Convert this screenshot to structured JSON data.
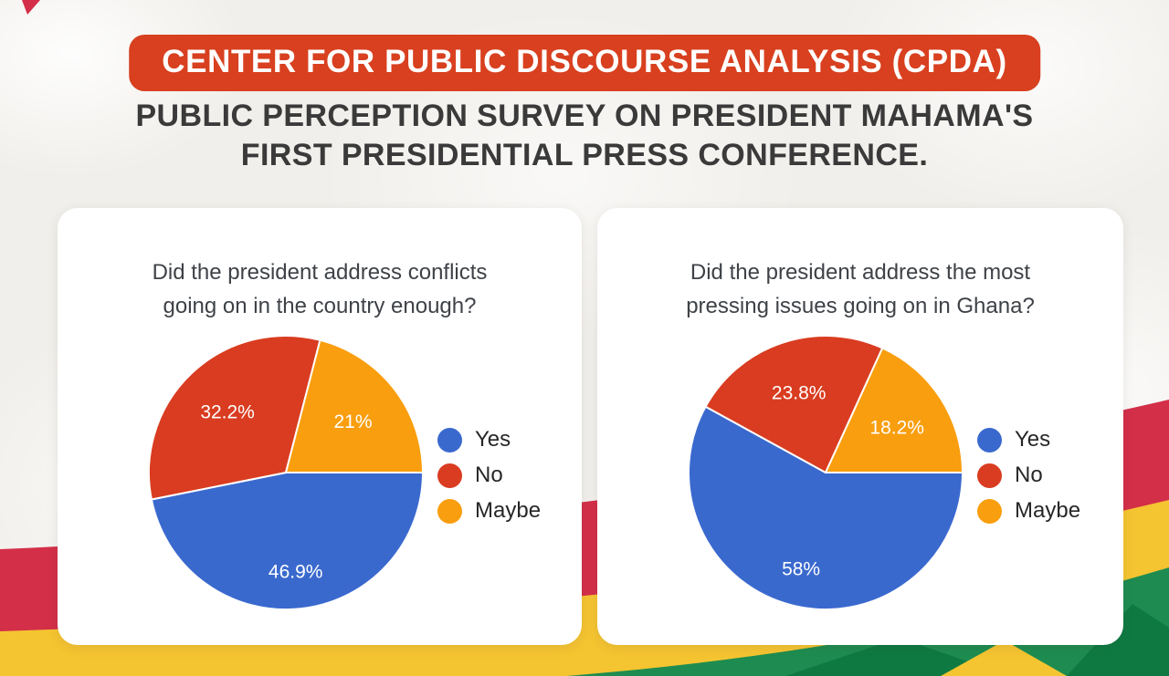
{
  "page": {
    "org_banner": "CENTER FOR PUBLIC DISCOURSE ANALYSIS (CPDA)",
    "headline_line1": "PUBLIC PERCEPTION SURVEY ON PRESIDENT MAHAMA'S",
    "headline_line2": "FIRST PRESIDENTIAL PRESS CONFERENCE."
  },
  "theme": {
    "banner_bg": "#D8401F",
    "headline_color": "#3A3A3A",
    "page_bg": "#F1EFEB",
    "card_bg": "#FFFFFF",
    "pie_blue": "#3A69CE",
    "pie_red": "#D93C20",
    "pie_orange": "#F99E0E",
    "ribbon_red": "#D32F49",
    "ribbon_yellow": "#F5C431",
    "ribbon_green": "#1E8C50",
    "ribbon_green_dark": "#0E7A42",
    "corner_accent": "#D32F49"
  },
  "chart_data": [
    {
      "type": "pie",
      "title": "Did the president address conflicts going on in the country enough?",
      "title_lines": [
        "Did the president address conflicts",
        "going on in the country enough?"
      ],
      "categories": [
        "Yes",
        "No",
        "Maybe"
      ],
      "values": [
        46.9,
        32.2,
        21
      ],
      "value_labels": [
        "46.9%",
        "32.2%",
        "21%"
      ],
      "colors": [
        "#3A69CE",
        "#D93C20",
        "#F99E0E"
      ],
      "legend_position": "right",
      "start_angle": "3 o'clock, clockwise"
    },
    {
      "type": "pie",
      "title": "Did the president address the most pressing issues going on in Ghana?",
      "title_lines": [
        "Did the president address the most",
        "pressing issues going on in Ghana?"
      ],
      "categories": [
        "Yes",
        "No",
        "Maybe"
      ],
      "values": [
        58,
        23.8,
        18.2
      ],
      "value_labels": [
        "58%",
        "23.8%",
        "18.2%"
      ],
      "colors": [
        "#3A69CE",
        "#D93C20",
        "#F99E0E"
      ],
      "legend_position": "right",
      "start_angle": "3 o'clock, clockwise"
    }
  ]
}
